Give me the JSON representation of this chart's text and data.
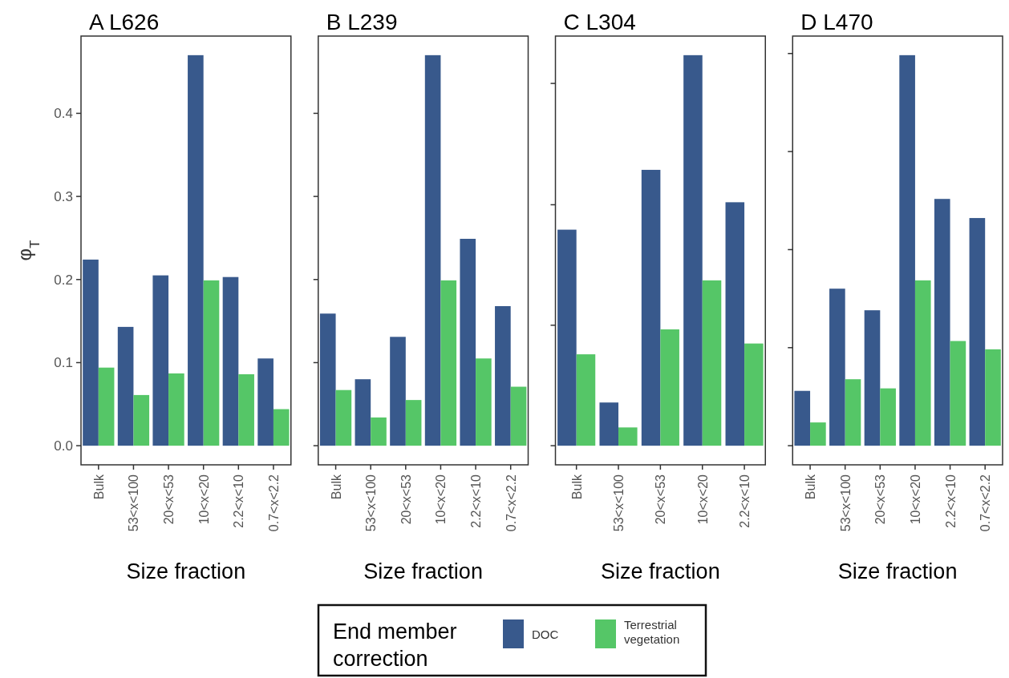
{
  "chart_data": [
    {
      "type": "bar",
      "title": "A L626",
      "xlabel": "Size fraction",
      "ylabel": "φ$_{T}$",
      "categories": [
        "Bulk",
        "53<x<100",
        "20<x<53",
        "10<x<20",
        "2.2<x<10",
        "0.7<x<2.2"
      ],
      "series": [
        {
          "name": "DOC",
          "color": "#38598c",
          "values": [
            0.224,
            0.143,
            0.205,
            0.47,
            0.203,
            0.105
          ]
        },
        {
          "name": "Terrestrial vegetation",
          "color": "#55c667",
          "values": [
            0.094,
            0.061,
            0.087,
            0.199,
            0.086,
            0.044
          ]
        }
      ],
      "ylim": [
        -0.023,
        0.493
      ],
      "yticks": [
        {
          "value": 0,
          "label": "0.0"
        },
        0.1,
        0.2,
        0.3,
        0.4
      ],
      "grid": false,
      "legend": "bottom",
      "legend_title": "End member correction"
    },
    {
      "type": "bar",
      "title": "B L239",
      "xlabel": "Size fraction",
      "categories": [
        "Bulk",
        "53<x<100",
        "20<x<53",
        "10<x<20",
        "2.2<x<10",
        "0.7<x<2.2"
      ],
      "series": [
        {
          "color": "#38598c",
          "values": [
            0.159,
            0.08,
            0.131,
            0.47,
            0.249,
            0.168
          ]
        },
        {
          "color": "#55c667",
          "values": [
            0.067,
            0.034,
            0.055,
            0.199,
            0.105,
            0.071
          ]
        }
      ],
      "ylim": [
        -0.023,
        0.493
      ],
      "yticks": [
        {
          "value": 0,
          "label": null
        },
        {
          "value": 0.1,
          "label": null
        },
        {
          "value": 0.2,
          "label": null
        },
        {
          "value": 0.3,
          "label": null
        },
        {
          "value": 0.4,
          "label": null
        }
      ],
      "grid": false,
      "tick_labels": "x"
    },
    {
      "type": "bar",
      "title": "C L304",
      "xlabel": "Size fraction",
      "categories": [
        "Bulk",
        "53<x<100",
        "20<x<53",
        "10<x<20",
        "2.2<x<10"
      ],
      "series": [
        {
          "color": "#38598c",
          "values": [
            0.26,
            0.052,
            0.332,
            0.47,
            0.293
          ]
        },
        {
          "color": "#55c667",
          "values": [
            0.11,
            0.022,
            0.14,
            0.199,
            0.123
          ]
        }
      ],
      "ylim": [
        -0.023,
        0.493
      ],
      "yticks": [
        {
          "value": 0,
          "label": null
        },
        {
          "value": 0.145,
          "label": null
        },
        {
          "value": 0.29,
          "label": null
        },
        {
          "value": 0.436,
          "label": null
        }
      ],
      "grid": false,
      "tick_labels": "x"
    },
    {
      "type": "bar",
      "title": "D L470",
      "xlabel": "Size fraction",
      "categories": [
        "Bulk",
        "53<x<100",
        "20<x<53",
        "10<x<20",
        "2.2<x<10",
        "0.7<x<2.2"
      ],
      "series": [
        {
          "color": "#38598c",
          "values": [
            0.066,
            0.189,
            0.163,
            0.47,
            0.297,
            0.274
          ]
        },
        {
          "color": "#55c667",
          "values": [
            0.028,
            0.08,
            0.069,
            0.199,
            0.126,
            0.116
          ]
        }
      ],
      "ylim": [
        -0.023,
        0.493
      ],
      "yticks": [
        {
          "value": 0,
          "label": null
        },
        {
          "value": 0.118,
          "label": null
        },
        {
          "value": 0.236,
          "label": null
        },
        {
          "value": 0.354,
          "label": null
        },
        {
          "value": 0.472,
          "label": null
        }
      ],
      "grid": false,
      "tick_labels": "x"
    }
  ]
}
